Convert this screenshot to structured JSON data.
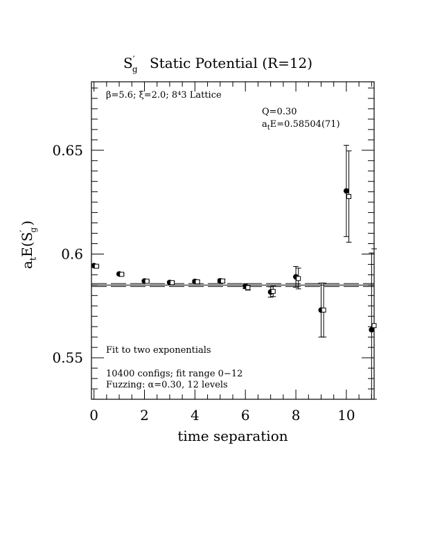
{
  "chart_data": {
    "type": "scatter",
    "title_main": "S",
    "title_prime": "′",
    "title_sub": "g",
    "title_rest": "Static Potential (R=12)",
    "xlabel": "time separation",
    "ylabel_a": "a",
    "ylabel_t": "t",
    "ylabel_rest": "E(S",
    "ylabel_prime": "′",
    "ylabel_g": "g",
    "ylabel_close": ")",
    "xlim": [
      -0.1,
      11.1
    ],
    "ylim": [
      0.53,
      0.683
    ],
    "x_ticks": [
      "0",
      "2",
      "4",
      "6",
      "8",
      "10"
    ],
    "y_ticks": [
      "0.55",
      "0.6",
      "0.65"
    ],
    "y_tick_values": [
      0.55,
      0.6,
      0.65
    ],
    "x_tick_values": [
      0,
      2,
      4,
      6,
      8,
      10
    ],
    "lattice_info": "β=5.6; ξ=2.0; 8⁴3 Lattice",
    "q_label": "Q=0.30",
    "energy_label_a": "a",
    "energy_label_t": "t",
    "energy_label_rest": "E=0.58504(71)",
    "fit_label": "Fit to two exponentials",
    "configs_label": "10400 configs; fit range 0−12",
    "fuzzing_label": "Fuzzing: α=0.30, 12 levels",
    "fit_band": {
      "center": 0.58504,
      "lower": 0.58433,
      "upper": 0.58575
    },
    "series": [
      {
        "marker": "filled-circle",
        "x": [
          0,
          1,
          2,
          3,
          4,
          5,
          6,
          7,
          8,
          9,
          10,
          11
        ],
        "y": [
          0.5944,
          0.5904,
          0.587,
          0.5863,
          0.5868,
          0.5871,
          0.5845,
          0.5817,
          0.589,
          0.573,
          0.6304,
          0.5635
        ],
        "err": [
          0.0004,
          0.0004,
          0.0004,
          0.0005,
          0.0006,
          0.0008,
          0.0012,
          0.0025,
          0.005,
          0.013,
          0.022,
          0.037
        ]
      },
      {
        "marker": "open-square",
        "x": [
          0.1,
          1.1,
          2.1,
          3.1,
          4.1,
          5.1,
          6.1,
          7.1,
          8.1,
          9.1,
          10.1,
          11.1
        ],
        "y": [
          0.5941,
          0.5902,
          0.5869,
          0.5862,
          0.5866,
          0.587,
          0.5838,
          0.582,
          0.5882,
          0.573,
          0.6277,
          0.5655
        ],
        "err": [
          0.0004,
          0.0004,
          0.0004,
          0.0005,
          0.0006,
          0.0008,
          0.0012,
          0.0025,
          0.005,
          0.013,
          0.022,
          0.037
        ]
      }
    ]
  }
}
